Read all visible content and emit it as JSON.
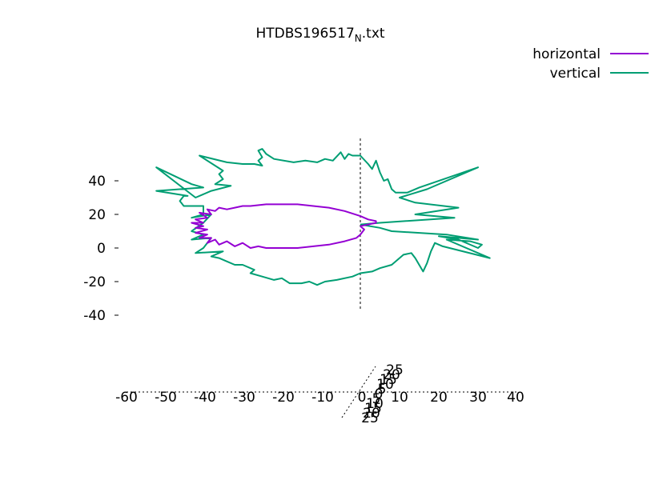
{
  "chart_data": {
    "type": "line",
    "title_base": "HTDBS196517",
    "title_sub": "N",
    "title_suffix": ".txt",
    "legend_position": "top-right",
    "colors": {
      "horizontal": "#9400d3",
      "vertical": "#009e73"
    },
    "z_axis": {
      "range": [
        -40,
        40
      ],
      "ticks": [
        "-40",
        "-20",
        "0",
        "20",
        "40"
      ]
    },
    "x_axis": {
      "range": [
        -60,
        40
      ],
      "ticks": [
        "-60",
        "-50",
        "-40",
        "-30",
        "-20",
        "-10",
        "0",
        "10",
        "20",
        "30",
        "40"
      ]
    },
    "y_axis": {
      "range": [
        -25,
        25
      ],
      "ticks": [
        "25",
        "20",
        "15",
        "10",
        "5",
        "0",
        "5",
        "10",
        "15",
        "20",
        "25"
      ]
    },
    "grid": false,
    "series": [
      {
        "name": "horizontal",
        "points": [
          [
            0,
            13
          ],
          [
            2,
            14
          ],
          [
            4,
            15
          ],
          [
            4,
            16
          ],
          [
            2,
            17
          ],
          [
            0,
            19
          ],
          [
            -4,
            22
          ],
          [
            -8,
            24
          ],
          [
            -12,
            25
          ],
          [
            -16,
            26
          ],
          [
            -20,
            26
          ],
          [
            -24,
            26
          ],
          [
            -28,
            25
          ],
          [
            -30,
            25
          ],
          [
            -32,
            24
          ],
          [
            -34,
            23
          ],
          [
            -36,
            24
          ],
          [
            -37,
            22
          ],
          [
            -39,
            23
          ],
          [
            -38,
            20
          ],
          [
            -41,
            21
          ],
          [
            -39,
            18
          ],
          [
            -42,
            17
          ],
          [
            -40,
            15
          ],
          [
            -43,
            15
          ],
          [
            -40,
            13
          ],
          [
            -42,
            12
          ],
          [
            -39,
            11
          ],
          [
            -42,
            9
          ],
          [
            -39,
            8
          ],
          [
            -41,
            6
          ],
          [
            -38,
            6
          ],
          [
            -39,
            3
          ],
          [
            -37,
            5
          ],
          [
            -36,
            2
          ],
          [
            -34,
            4
          ],
          [
            -32,
            1
          ],
          [
            -30,
            3
          ],
          [
            -28,
            0
          ],
          [
            -26,
            1
          ],
          [
            -24,
            0
          ],
          [
            -20,
            0
          ],
          [
            -16,
            0
          ],
          [
            -12,
            1
          ],
          [
            -8,
            2
          ],
          [
            -4,
            4
          ],
          [
            -1,
            6
          ],
          [
            0,
            8
          ],
          [
            1,
            11
          ],
          [
            0,
            13
          ]
        ]
      },
      {
        "name": "vertical",
        "points": [
          [
            0,
            14
          ],
          [
            5,
            15
          ],
          [
            24,
            18
          ],
          [
            14,
            20
          ],
          [
            25,
            24
          ],
          [
            14,
            27
          ],
          [
            10,
            30
          ],
          [
            17,
            35
          ],
          [
            30,
            48
          ],
          [
            15,
            36
          ],
          [
            12,
            33
          ],
          [
            9,
            33
          ],
          [
            8,
            35
          ],
          [
            7,
            41
          ],
          [
            6,
            40
          ],
          [
            5,
            45
          ],
          [
            4,
            52
          ],
          [
            3,
            47
          ],
          [
            2,
            50
          ],
          [
            0,
            55
          ],
          [
            -2,
            55
          ],
          [
            -3,
            56
          ],
          [
            -4,
            53
          ],
          [
            -5,
            57
          ],
          [
            -7,
            52
          ],
          [
            -9,
            53
          ],
          [
            -11,
            51
          ],
          [
            -14,
            52
          ],
          [
            -17,
            51
          ],
          [
            -22,
            53
          ],
          [
            -24,
            56
          ],
          [
            -25,
            59
          ],
          [
            -26,
            58
          ],
          [
            -25,
            54
          ],
          [
            -26,
            52
          ],
          [
            -25,
            49
          ],
          [
            -27,
            50
          ],
          [
            -30,
            50
          ],
          [
            -34,
            51
          ],
          [
            -41,
            55
          ],
          [
            -35,
            46
          ],
          [
            -36,
            44
          ],
          [
            -35,
            41
          ],
          [
            -37,
            38
          ],
          [
            -33,
            37
          ],
          [
            -38,
            34
          ],
          [
            -42,
            30
          ],
          [
            -52,
            48
          ],
          [
            -43,
            38
          ],
          [
            -40,
            36
          ],
          [
            -52,
            34
          ],
          [
            -44,
            31
          ],
          [
            -45,
            31
          ],
          [
            -46,
            28
          ],
          [
            -45,
            25
          ],
          [
            -40,
            25
          ],
          [
            -40,
            20
          ],
          [
            -43,
            18
          ],
          [
            -38,
            20
          ],
          [
            -40,
            15
          ],
          [
            -43,
            10
          ],
          [
            -40,
            8
          ],
          [
            -43,
            5
          ],
          [
            -38,
            6
          ],
          [
            -40,
            0
          ],
          [
            -42,
            -3
          ],
          [
            -35,
            -2
          ],
          [
            -38,
            -5
          ],
          [
            -36,
            -6
          ],
          [
            -34,
            -8
          ],
          [
            -32,
            -10
          ],
          [
            -30,
            -10
          ],
          [
            -27,
            -13
          ],
          [
            -28,
            -15
          ],
          [
            -25,
            -17
          ],
          [
            -22,
            -19
          ],
          [
            -20,
            -18
          ],
          [
            -18,
            -21
          ],
          [
            -15,
            -21
          ],
          [
            -13,
            -20
          ],
          [
            -11,
            -22
          ],
          [
            -9,
            -20
          ],
          [
            -6,
            -19
          ],
          [
            -2,
            -17
          ],
          [
            0,
            -15
          ],
          [
            3,
            -14
          ],
          [
            5,
            -12
          ],
          [
            8,
            -10
          ],
          [
            11,
            -4
          ],
          [
            13,
            -3
          ],
          [
            14,
            -6
          ],
          [
            15,
            -10
          ],
          [
            16,
            -14
          ],
          [
            17,
            -9
          ],
          [
            18,
            -2
          ],
          [
            19,
            3
          ],
          [
            21,
            1
          ],
          [
            33,
            -6
          ],
          [
            22,
            5
          ],
          [
            28,
            4
          ],
          [
            31,
            2
          ],
          [
            30,
            0
          ],
          [
            25,
            5
          ],
          [
            20,
            7
          ],
          [
            30,
            5
          ],
          [
            22,
            8
          ],
          [
            8,
            10
          ],
          [
            5,
            12
          ],
          [
            0,
            14
          ]
        ]
      }
    ]
  }
}
